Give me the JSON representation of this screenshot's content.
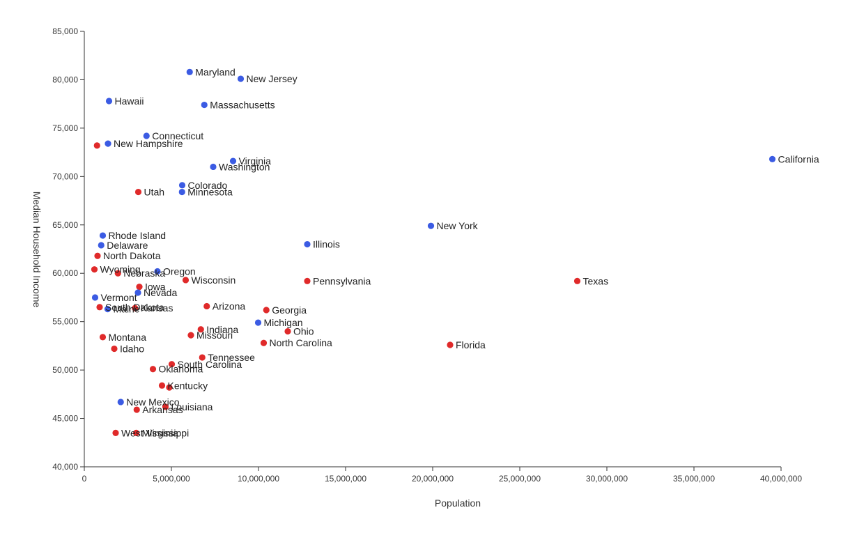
{
  "chart_data": {
    "type": "scatter",
    "title": "",
    "xlabel": "Population",
    "ylabel": "Median Household Income",
    "xlim": [
      0,
      40000000
    ],
    "ylim": [
      40000,
      85000
    ],
    "x_ticks": [
      0,
      5000000,
      10000000,
      15000000,
      20000000,
      25000000,
      30000000,
      35000000,
      40000000
    ],
    "x_tick_labels": [
      "0",
      "5,000,000",
      "10,000,000",
      "15,000,000",
      "20,000,000",
      "25,000,000",
      "30,000,000",
      "35,000,000",
      "40,000,000"
    ],
    "y_ticks": [
      40000,
      45000,
      50000,
      55000,
      60000,
      65000,
      70000,
      75000,
      80000,
      85000
    ],
    "y_tick_labels": [
      "40,000",
      "45,000",
      "50,000",
      "55,000",
      "60,000",
      "65,000",
      "70,000",
      "75,000",
      "80,000",
      "85,000"
    ],
    "grid": false,
    "legend": "none",
    "colors": {
      "blue": "#3b5be3",
      "red": "#e02a2a"
    },
    "points": [
      {
        "label": "Maryland",
        "x": 6050000,
        "y": 80800,
        "color": "blue"
      },
      {
        "label": "New Jersey",
        "x": 8980000,
        "y": 80100,
        "color": "blue"
      },
      {
        "label": "Hawaii",
        "x": 1420000,
        "y": 77800,
        "color": "blue"
      },
      {
        "label": "Massachusetts",
        "x": 6890000,
        "y": 77400,
        "color": "blue"
      },
      {
        "label": "Connecticut",
        "x": 3570000,
        "y": 74200,
        "color": "blue"
      },
      {
        "label": "New Hampshire",
        "x": 1360000,
        "y": 73400,
        "color": "blue"
      },
      {
        "label": "",
        "x": 730000,
        "y": 73200,
        "color": "red"
      },
      {
        "label": "Virginia",
        "x": 8540000,
        "y": 71600,
        "color": "blue"
      },
      {
        "label": "Washington",
        "x": 7400000,
        "y": 71000,
        "color": "blue"
      },
      {
        "label": "California",
        "x": 39500000,
        "y": 71800,
        "color": "blue"
      },
      {
        "label": "Colorado",
        "x": 5620000,
        "y": 69100,
        "color": "blue"
      },
      {
        "label": "Minnesota",
        "x": 5610000,
        "y": 68400,
        "color": "blue"
      },
      {
        "label": "Utah",
        "x": 3100000,
        "y": 68400,
        "color": "red"
      },
      {
        "label": "New York",
        "x": 19900000,
        "y": 64900,
        "color": "blue"
      },
      {
        "label": "Rhode Island",
        "x": 1060000,
        "y": 63900,
        "color": "blue"
      },
      {
        "label": "Illinois",
        "x": 12800000,
        "y": 63000,
        "color": "blue"
      },
      {
        "label": "Delaware",
        "x": 970000,
        "y": 62900,
        "color": "blue"
      },
      {
        "label": "North Dakota",
        "x": 760000,
        "y": 61800,
        "color": "red"
      },
      {
        "label": "Wyoming",
        "x": 580000,
        "y": 60400,
        "color": "red"
      },
      {
        "label": "Oregon",
        "x": 4200000,
        "y": 60200,
        "color": "blue"
      },
      {
        "label": "Nebraska",
        "x": 1930000,
        "y": 60000,
        "color": "red"
      },
      {
        "label": "Wisconsin",
        "x": 5820000,
        "y": 59300,
        "color": "red"
      },
      {
        "label": "Pennsylvania",
        "x": 12800000,
        "y": 59200,
        "color": "red"
      },
      {
        "label": "Texas",
        "x": 28300000,
        "y": 59200,
        "color": "red"
      },
      {
        "label": "Iowa",
        "x": 3160000,
        "y": 58600,
        "color": "red"
      },
      {
        "label": "Nevada",
        "x": 3080000,
        "y": 58000,
        "color": "blue"
      },
      {
        "label": "Vermont",
        "x": 620000,
        "y": 57500,
        "color": "blue"
      },
      {
        "label": "South Dakota",
        "x": 880000,
        "y": 56500,
        "color": "red"
      },
      {
        "label": "Kansas",
        "x": 2910000,
        "y": 56400,
        "color": "red"
      },
      {
        "label": "Maine",
        "x": 1340000,
        "y": 56300,
        "color": "blue"
      },
      {
        "label": "Arizona",
        "x": 7030000,
        "y": 56600,
        "color": "red"
      },
      {
        "label": "Georgia",
        "x": 10450000,
        "y": 56200,
        "color": "red"
      },
      {
        "label": "Michigan",
        "x": 9980000,
        "y": 54900,
        "color": "blue"
      },
      {
        "label": "Indiana",
        "x": 6690000,
        "y": 54200,
        "color": "red"
      },
      {
        "label": "Ohio",
        "x": 11680000,
        "y": 54000,
        "color": "red"
      },
      {
        "label": "Missouri",
        "x": 6120000,
        "y": 53600,
        "color": "red"
      },
      {
        "label": "Montana",
        "x": 1060000,
        "y": 53400,
        "color": "red"
      },
      {
        "label": "North Carolina",
        "x": 10300000,
        "y": 52800,
        "color": "red"
      },
      {
        "label": "Florida",
        "x": 21000000,
        "y": 52600,
        "color": "red"
      },
      {
        "label": "Idaho",
        "x": 1720000,
        "y": 52200,
        "color": "red"
      },
      {
        "label": "Tennessee",
        "x": 6770000,
        "y": 51300,
        "color": "red"
      },
      {
        "label": "South Carolina",
        "x": 5020000,
        "y": 50600,
        "color": "red"
      },
      {
        "label": "Oklahoma",
        "x": 3940000,
        "y": 50100,
        "color": "red"
      },
      {
        "label": "Kentucky",
        "x": 4460000,
        "y": 48400,
        "color": "red"
      },
      {
        "label": "",
        "x": 4880000,
        "y": 48200,
        "color": "red"
      },
      {
        "label": "New Mexico",
        "x": 2090000,
        "y": 46700,
        "color": "blue"
      },
      {
        "label": "Louisiana",
        "x": 4660000,
        "y": 46200,
        "color": "red"
      },
      {
        "label": "Arkansas",
        "x": 3010000,
        "y": 45900,
        "color": "red"
      },
      {
        "label": "West Virginia",
        "x": 1800000,
        "y": 43500,
        "color": "red"
      },
      {
        "label": "Mississippi",
        "x": 2980000,
        "y": 43500,
        "color": "red"
      }
    ]
  }
}
